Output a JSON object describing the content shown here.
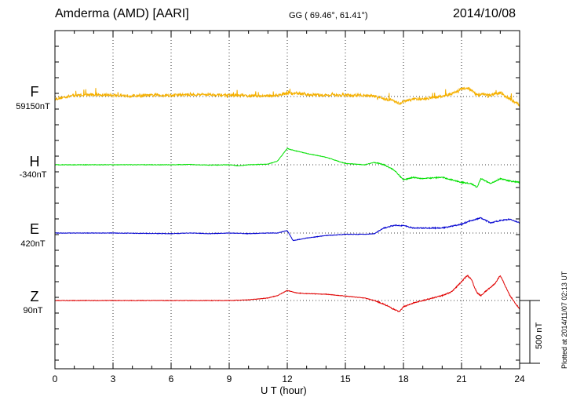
{
  "header": {
    "station": "Amderma (AMD)  [AARI]",
    "coords": "GG ( 69.46°,  61.41°)",
    "date": "2014/10/08"
  },
  "plotted_note": "Plotted at 2014/11/07 02:13 UT",
  "scale_label": "500 nT",
  "colors": {
    "F": "#f5b000",
    "H": "#00e000",
    "E": "#0000d0",
    "Z": "#e00000",
    "axis": "#000000"
  },
  "chart_data": {
    "type": "line",
    "title": "Amderma (AMD)  [AARI]",
    "xlabel": "U T (hour)",
    "ylabel": "",
    "xlim": [
      0,
      24
    ],
    "xticks": [
      0,
      3,
      6,
      9,
      12,
      15,
      18,
      21,
      24
    ],
    "xtick_labels": [
      "0",
      "3",
      "6",
      "9",
      "12",
      "15",
      "18",
      "21",
      "24"
    ],
    "grid": true,
    "scale_bar_nT": 500,
    "series": [
      {
        "name": "F",
        "baseline_label": "59150nT",
        "color": "#f5b000",
        "noise": 22,
        "x": [
          0,
          1,
          2,
          3,
          4,
          5,
          6,
          7,
          8,
          9,
          10,
          11,
          11.5,
          12,
          12.5,
          13,
          14,
          15,
          16,
          16.5,
          17,
          17.5,
          17.8,
          18,
          18.5,
          19,
          19.5,
          20,
          20.5,
          21,
          21.3,
          21.5,
          21.8,
          22,
          22.5,
          23,
          23.5,
          24
        ],
        "y": [
          -20,
          10,
          15,
          10,
          5,
          10,
          10,
          15,
          15,
          10,
          5,
          5,
          10,
          25,
          25,
          15,
          10,
          10,
          10,
          5,
          -20,
          -30,
          -60,
          -40,
          -20,
          -20,
          -10,
          0,
          20,
          60,
          70,
          50,
          10,
          20,
          10,
          30,
          -20,
          -70
        ]
      },
      {
        "name": "H",
        "baseline_label": "-340nT",
        "color": "#00e000",
        "noise": 4,
        "x": [
          0,
          3,
          6,
          7,
          8,
          9,
          9.5,
          10,
          11,
          11.5,
          12,
          12.2,
          13,
          14,
          15,
          16,
          16.5,
          17,
          17.5,
          18,
          18.5,
          19,
          20,
          21,
          21.5,
          21.8,
          22,
          22.5,
          23,
          23.5,
          24
        ],
        "y": [
          0,
          0,
          0,
          2,
          -3,
          0,
          -8,
          0,
          5,
          30,
          130,
          120,
          90,
          60,
          10,
          0,
          20,
          0,
          -40,
          -120,
          -100,
          -110,
          -100,
          -140,
          -150,
          -180,
          -110,
          -150,
          -110,
          -130,
          -140
        ]
      },
      {
        "name": "E",
        "baseline_label": "420nT",
        "color": "#0000d0",
        "noise": 4,
        "x": [
          0,
          3,
          6,
          7,
          8,
          9,
          10,
          11,
          11.5,
          12,
          12.3,
          13,
          14,
          15,
          16,
          16.5,
          17,
          17.5,
          18,
          18.5,
          19,
          20,
          21,
          21.5,
          22,
          22.5,
          23,
          23.5,
          24
        ],
        "y": [
          0,
          0,
          -5,
          0,
          -5,
          0,
          -5,
          0,
          0,
          20,
          -60,
          -40,
          -20,
          -10,
          -10,
          -5,
          40,
          60,
          60,
          40,
          40,
          40,
          70,
          100,
          120,
          80,
          100,
          110,
          80
        ]
      },
      {
        "name": "Z",
        "baseline_label": "90nT",
        "color": "#e00000",
        "noise": 4,
        "x": [
          0,
          3,
          6,
          9,
          10,
          11,
          11.5,
          12,
          12.5,
          13,
          14,
          15,
          16,
          16.5,
          17,
          17.5,
          17.8,
          18,
          18.5,
          19,
          20,
          20.5,
          21,
          21.3,
          21.5,
          21.8,
          22,
          22.3,
          22.7,
          23,
          23.5,
          24
        ],
        "y": [
          0,
          0,
          0,
          0,
          5,
          20,
          40,
          80,
          60,
          55,
          50,
          35,
          20,
          0,
          -30,
          -70,
          -90,
          -50,
          -20,
          0,
          40,
          70,
          150,
          200,
          170,
          60,
          40,
          80,
          130,
          200,
          40,
          -70
        ]
      }
    ]
  }
}
